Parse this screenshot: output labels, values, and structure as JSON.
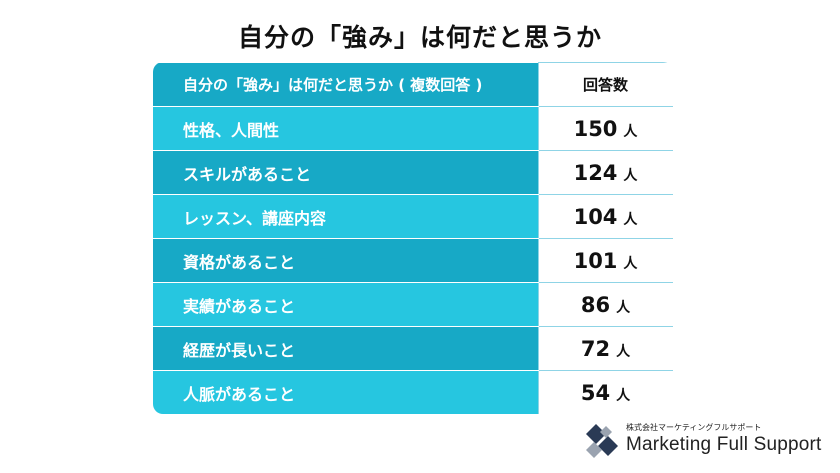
{
  "title": "自分の「強み」は何だと思うか",
  "chart_data": {
    "type": "table",
    "header": {
      "label": "自分の「強み」は何だと思うか ( 複数回答 )",
      "value": "回答数"
    },
    "rows": [
      {
        "label": "性格、人間性",
        "value": 150,
        "unit": "人"
      },
      {
        "label": "スキルがあること",
        "value": 124,
        "unit": "人"
      },
      {
        "label": "レッスン、講座内容",
        "value": 104,
        "unit": "人"
      },
      {
        "label": "資格があること",
        "value": 101,
        "unit": "人"
      },
      {
        "label": "実績があること",
        "value": 86,
        "unit": "人"
      },
      {
        "label": "経歴が長いこと",
        "value": 72,
        "unit": "人"
      },
      {
        "label": "人脈があること",
        "value": 54,
        "unit": "人"
      }
    ]
  },
  "logo": {
    "company": "株式会社マーケティングフルサポート",
    "name": "Marketing Full Support"
  },
  "colors": {
    "row_light": "#26c6e0",
    "row_dark": "#17a9c6",
    "logo_dark": "#2a3a55",
    "logo_light": "#9aa3b0"
  }
}
